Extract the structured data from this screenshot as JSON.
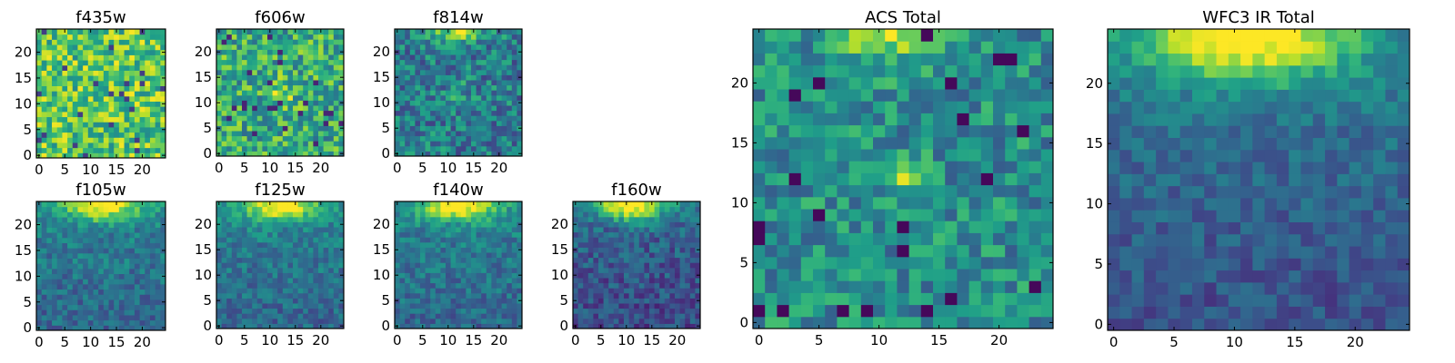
{
  "chart_data": [
    {
      "type": "heatmap",
      "title": "f435w",
      "grid": [
        25,
        25
      ],
      "xlim": [
        0,
        24
      ],
      "ylim": [
        0,
        24
      ],
      "xticks": [
        "0",
        "5",
        "10",
        "15",
        "20"
      ],
      "yticks": [
        "0",
        "5",
        "10",
        "15",
        "20"
      ],
      "colormap": "viridis",
      "profile": "noise_bright"
    },
    {
      "type": "heatmap",
      "title": "f606w",
      "grid": [
        25,
        25
      ],
      "xlim": [
        0,
        24
      ],
      "ylim": [
        0,
        24
      ],
      "xticks": [
        "0",
        "5",
        "10",
        "15",
        "20"
      ],
      "yticks": [
        "0",
        "5",
        "10",
        "15",
        "20"
      ],
      "colormap": "viridis",
      "profile": "noise_mid"
    },
    {
      "type": "heatmap",
      "title": "f814w",
      "grid": [
        25,
        25
      ],
      "xlim": [
        0,
        24
      ],
      "ylim": [
        0,
        24
      ],
      "xticks": [
        "0",
        "5",
        "10",
        "15",
        "20"
      ],
      "yticks": [
        "0",
        "5",
        "10",
        "15",
        "20"
      ],
      "colormap": "viridis",
      "profile": "noise_top"
    },
    {
      "type": "heatmap",
      "title": "f105w",
      "grid": [
        25,
        25
      ],
      "xlim": [
        0,
        24
      ],
      "ylim": [
        0,
        24
      ],
      "xticks": [
        "0",
        "5",
        "10",
        "15",
        "20"
      ],
      "yticks": [
        "0",
        "5",
        "10",
        "15",
        "20"
      ],
      "colormap": "viridis",
      "profile": "ir"
    },
    {
      "type": "heatmap",
      "title": "f125w",
      "grid": [
        25,
        25
      ],
      "xlim": [
        0,
        24
      ],
      "ylim": [
        0,
        24
      ],
      "xticks": [
        "0",
        "5",
        "10",
        "15",
        "20"
      ],
      "yticks": [
        "0",
        "5",
        "10",
        "15",
        "20"
      ],
      "colormap": "viridis",
      "profile": "ir"
    },
    {
      "type": "heatmap",
      "title": "f140w",
      "grid": [
        25,
        25
      ],
      "xlim": [
        0,
        24
      ],
      "ylim": [
        0,
        24
      ],
      "xticks": [
        "0",
        "5",
        "10",
        "15",
        "20"
      ],
      "yticks": [
        "0",
        "5",
        "10",
        "15",
        "20"
      ],
      "colormap": "viridis",
      "profile": "ir"
    },
    {
      "type": "heatmap",
      "title": "f160w",
      "grid": [
        25,
        25
      ],
      "xlim": [
        0,
        24
      ],
      "ylim": [
        0,
        24
      ],
      "xticks": [
        "0",
        "5",
        "10",
        "15",
        "20"
      ],
      "yticks": [
        "0",
        "5",
        "10",
        "15",
        "20"
      ],
      "colormap": "viridis",
      "profile": "ir_dark"
    },
    {
      "type": "heatmap",
      "title": "ACS Total",
      "grid": [
        25,
        25
      ],
      "xlim": [
        0,
        24
      ],
      "ylim": [
        0,
        24
      ],
      "xticks": [
        "0",
        "5",
        "10",
        "15",
        "20"
      ],
      "yticks": [
        "0",
        "5",
        "10",
        "15",
        "20"
      ],
      "colormap": "viridis",
      "profile": "acs"
    },
    {
      "type": "heatmap",
      "title": "WFC3 IR Total",
      "grid": [
        25,
        25
      ],
      "xlim": [
        0,
        24
      ],
      "ylim": [
        0,
        24
      ],
      "xticks": [
        "0",
        "5",
        "10",
        "15",
        "20"
      ],
      "yticks": [
        "0",
        "5",
        "10",
        "15",
        "20"
      ],
      "colormap": "viridis",
      "profile": "ir_total"
    }
  ]
}
